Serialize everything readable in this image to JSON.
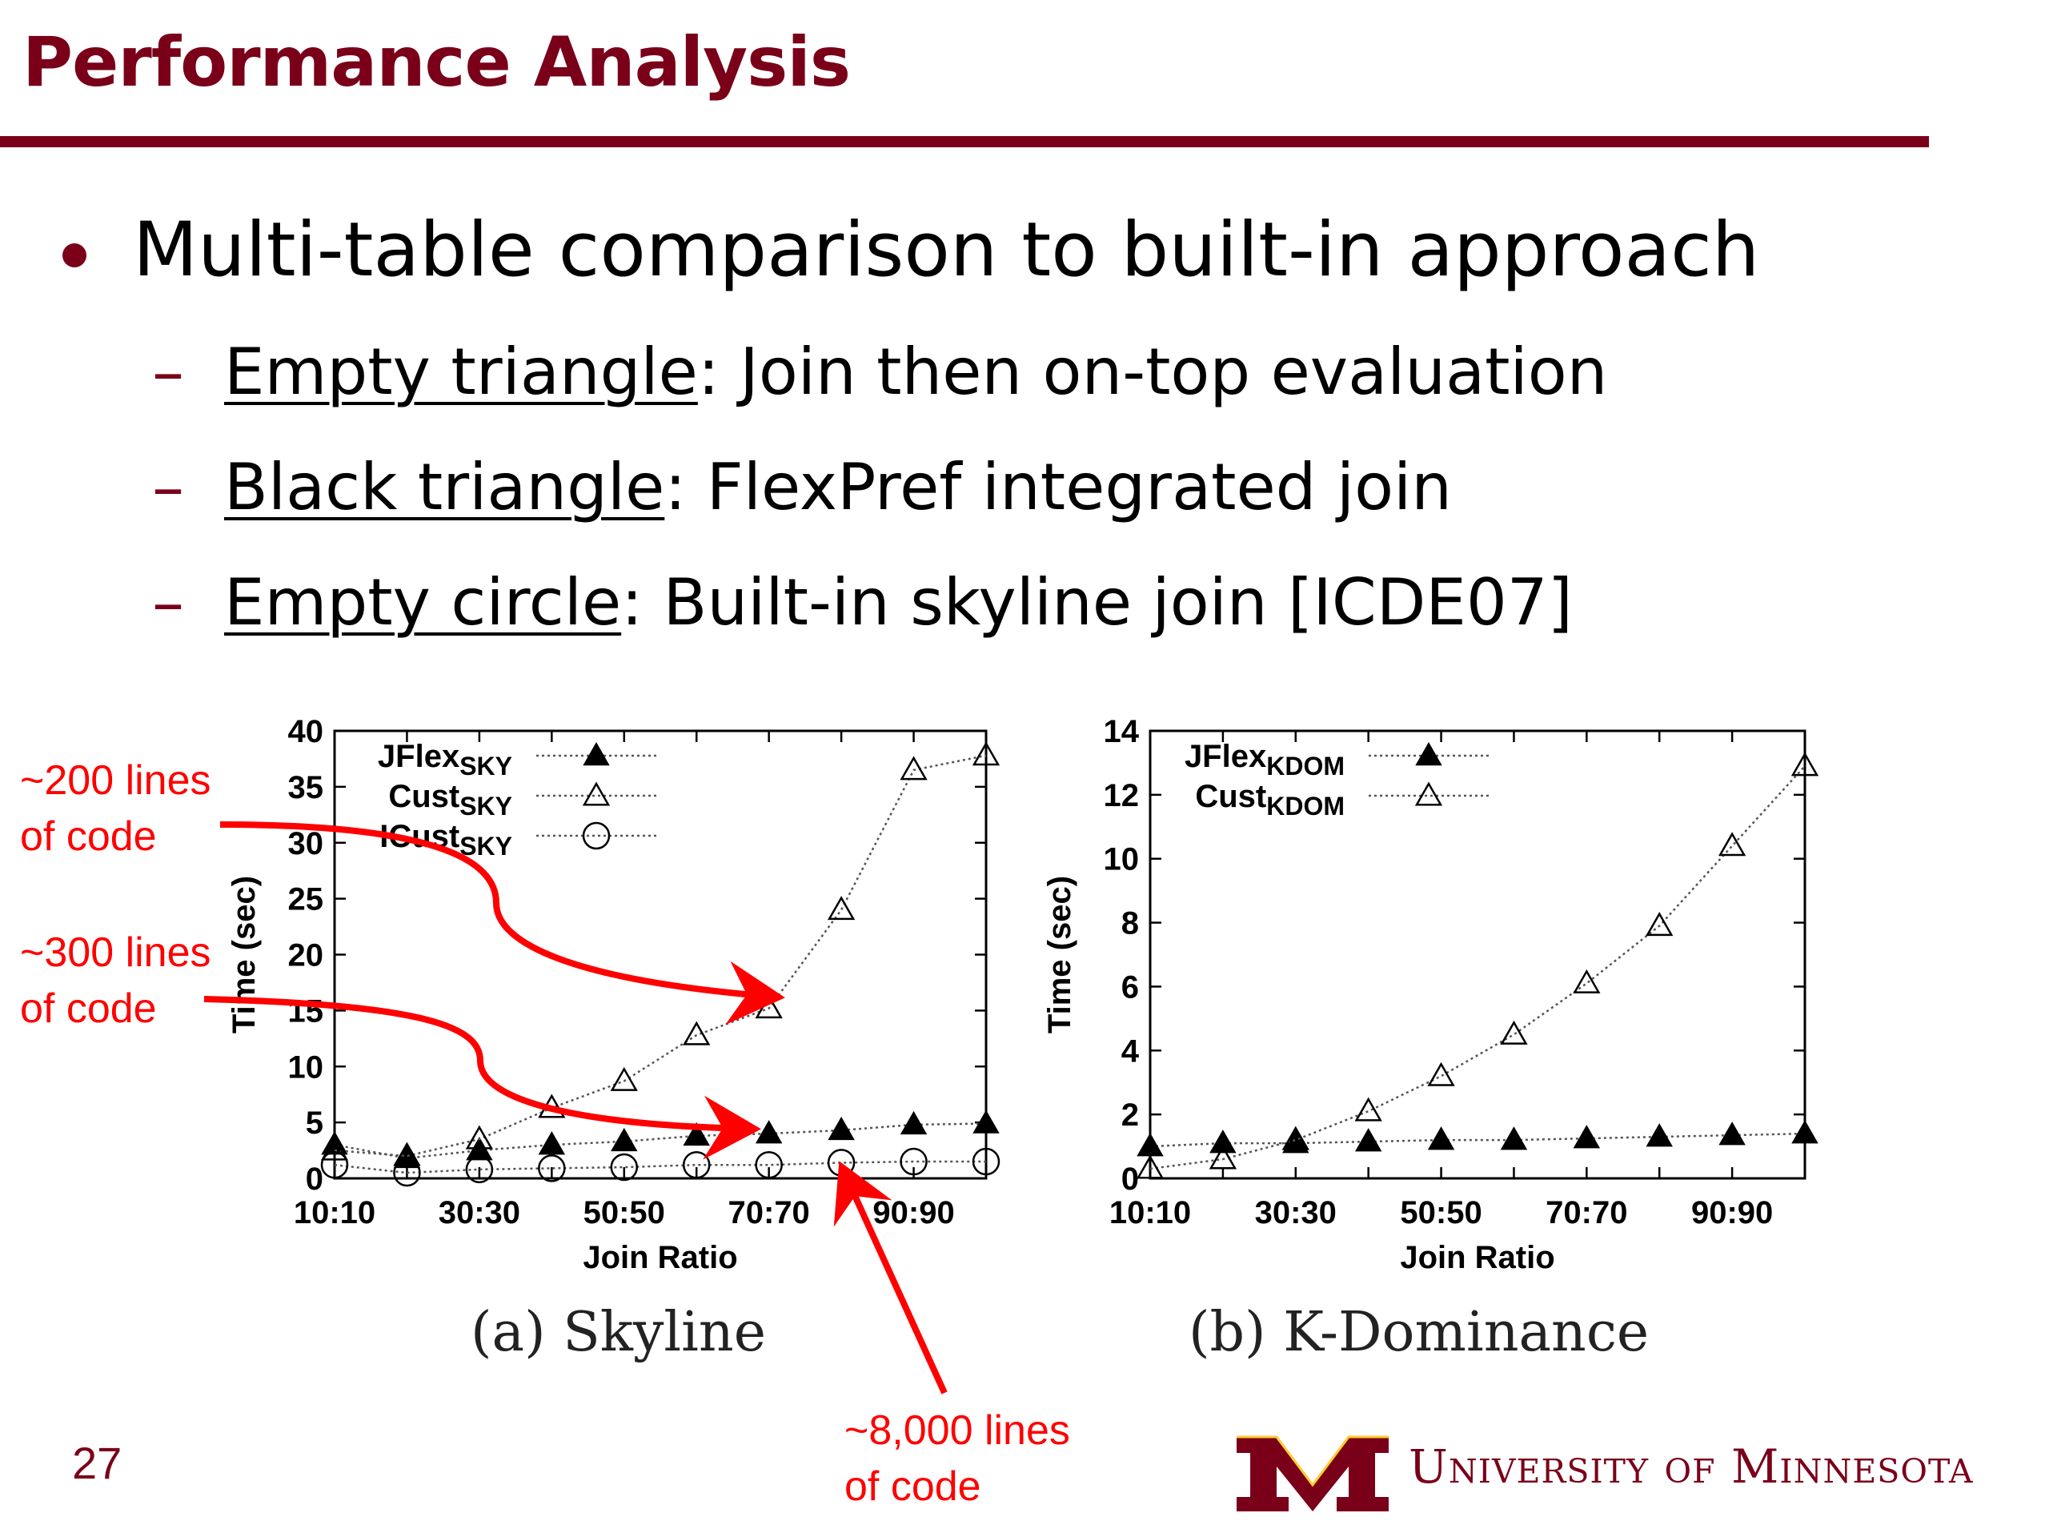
{
  "slide": {
    "title": "Performance Analysis",
    "bullet": "Multi-table comparison to built-in approach",
    "subbullets": [
      {
        "term": "Empty triangle",
        "rest": ": Join then on-top evaluation"
      },
      {
        "term": "Black triangle",
        "rest": ": FlexPref integrated join"
      },
      {
        "term": "Empty circle",
        "rest": ": Built-in skyline join [ICDE07]"
      }
    ],
    "page_number": "27",
    "university": "University of Minnesota"
  },
  "annotations": {
    "a200_line1": "~200 lines",
    "a200_line2": "of code",
    "a300_line1": "~300 lines",
    "a300_line2": "of code",
    "a8000_line1": "~8,000 lines",
    "a8000_line2": "of code",
    "arrow_color": "#ff0000"
  },
  "colors": {
    "accent": "#7a0019",
    "annotation": "#ff0000"
  },
  "chart_data": [
    {
      "type": "line",
      "caption": "(a) Skyline",
      "xlabel": "Join Ratio",
      "ylabel": "Time (sec)",
      "x": [
        "10:10",
        "20:20",
        "30:30",
        "40:40",
        "50:50",
        "60:60",
        "70:70",
        "80:80",
        "90:90",
        "100:100"
      ],
      "xtick_labels": [
        "10:10",
        "30:30",
        "50:50",
        "70:70",
        "90:90"
      ],
      "ylim": [
        0,
        40
      ],
      "yticks": [
        0,
        5,
        10,
        15,
        20,
        25,
        30,
        35,
        40
      ],
      "legend_position": "top-left",
      "series": [
        {
          "name": "JFlex",
          "sub": "SKY",
          "marker": "filled-triangle",
          "values": [
            3.0,
            1.8,
            2.5,
            3.0,
            3.3,
            3.8,
            4.0,
            4.3,
            4.8,
            4.9
          ]
        },
        {
          "name": "Cust",
          "sub": "SKY",
          "marker": "empty-triangle",
          "values": [
            2.5,
            2.0,
            3.5,
            6.3,
            8.7,
            12.8,
            15.2,
            24.0,
            36.5,
            37.8
          ]
        },
        {
          "name": "ICust",
          "sub": "SKY",
          "marker": "empty-circle",
          "values": [
            1.2,
            0.5,
            0.8,
            0.9,
            1.0,
            1.2,
            1.2,
            1.4,
            1.5,
            1.5
          ]
        }
      ]
    },
    {
      "type": "line",
      "caption": "(b) K-Dominance",
      "xlabel": "Join Ratio",
      "ylabel": "Time (sec)",
      "x": [
        "10:10",
        "20:20",
        "30:30",
        "40:40",
        "50:50",
        "60:60",
        "70:70",
        "80:80",
        "90:90",
        "100:100"
      ],
      "xtick_labels": [
        "10:10",
        "30:30",
        "50:50",
        "70:70",
        "90:90"
      ],
      "ylim": [
        0,
        14
      ],
      "yticks": [
        0,
        2,
        4,
        6,
        8,
        10,
        12,
        14
      ],
      "legend_position": "top-left",
      "series": [
        {
          "name": "JFlex",
          "sub": "KDOM",
          "marker": "filled-triangle",
          "values": [
            1.0,
            1.1,
            1.1,
            1.15,
            1.2,
            1.2,
            1.25,
            1.3,
            1.35,
            1.4
          ]
        },
        {
          "name": "Cust",
          "sub": "KDOM",
          "marker": "empty-triangle",
          "values": [
            0.3,
            0.6,
            1.2,
            2.1,
            3.2,
            4.5,
            6.1,
            7.9,
            10.4,
            12.9
          ]
        }
      ]
    }
  ]
}
